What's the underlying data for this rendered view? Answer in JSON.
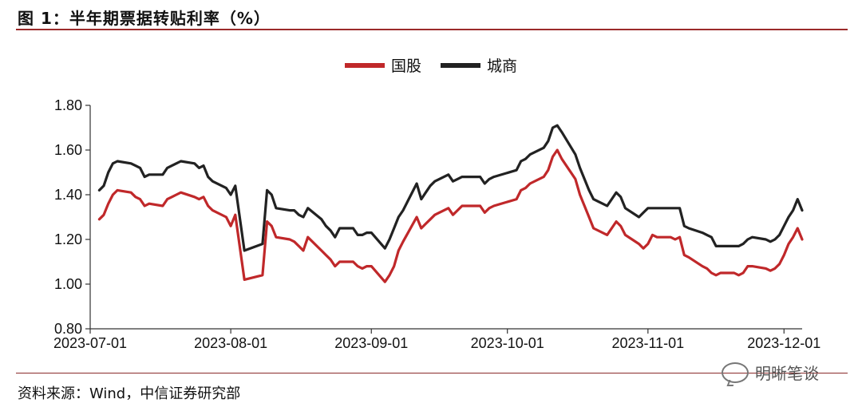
{
  "figure": {
    "title": "图 1：半年期票据转贴利率（%）",
    "source": "资料来源：Wind，中信证券研究部",
    "watermark": "明晰笔谈"
  },
  "chart_data": {
    "type": "line",
    "ylim": [
      0.8,
      1.8
    ],
    "yticks": [
      "1.80",
      "1.60",
      "1.40",
      "1.20",
      "1.00",
      "0.80"
    ],
    "xticks": [
      "2023-07-01",
      "2023-08-01",
      "2023-09-01",
      "2023-10-01",
      "2023-11-01",
      "2023-12-01"
    ],
    "x_start": "2023-07-01",
    "x_end": "2023-12-05",
    "legend_position": "top-center",
    "grid": false,
    "series": [
      {
        "name": "国股",
        "color": "#c0282a",
        "points": [
          [
            "2023-07-03",
            1.29
          ],
          [
            "2023-07-04",
            1.31
          ],
          [
            "2023-07-05",
            1.36
          ],
          [
            "2023-07-06",
            1.4
          ],
          [
            "2023-07-07",
            1.42
          ],
          [
            "2023-07-10",
            1.41
          ],
          [
            "2023-07-11",
            1.39
          ],
          [
            "2023-07-12",
            1.38
          ],
          [
            "2023-07-13",
            1.35
          ],
          [
            "2023-07-14",
            1.36
          ],
          [
            "2023-07-17",
            1.35
          ],
          [
            "2023-07-18",
            1.38
          ],
          [
            "2023-07-19",
            1.39
          ],
          [
            "2023-07-20",
            1.4
          ],
          [
            "2023-07-21",
            1.41
          ],
          [
            "2023-07-24",
            1.39
          ],
          [
            "2023-07-25",
            1.38
          ],
          [
            "2023-07-26",
            1.39
          ],
          [
            "2023-07-27",
            1.35
          ],
          [
            "2023-07-28",
            1.33
          ],
          [
            "2023-07-31",
            1.3
          ],
          [
            "2023-08-01",
            1.26
          ],
          [
            "2023-08-02",
            1.31
          ],
          [
            "2023-08-04",
            1.02
          ],
          [
            "2023-08-08",
            1.04
          ],
          [
            "2023-08-09",
            1.28
          ],
          [
            "2023-08-10",
            1.26
          ],
          [
            "2023-08-11",
            1.21
          ],
          [
            "2023-08-14",
            1.2
          ],
          [
            "2023-08-15",
            1.19
          ],
          [
            "2023-08-16",
            1.17
          ],
          [
            "2023-08-17",
            1.15
          ],
          [
            "2023-08-18",
            1.21
          ],
          [
            "2023-08-21",
            1.15
          ],
          [
            "2023-08-22",
            1.13
          ],
          [
            "2023-08-23",
            1.11
          ],
          [
            "2023-08-24",
            1.08
          ],
          [
            "2023-08-25",
            1.1
          ],
          [
            "2023-08-28",
            1.1
          ],
          [
            "2023-08-29",
            1.08
          ],
          [
            "2023-08-30",
            1.07
          ],
          [
            "2023-08-31",
            1.08
          ],
          [
            "2023-09-01",
            1.08
          ],
          [
            "2023-09-04",
            1.01
          ],
          [
            "2023-09-05",
            1.04
          ],
          [
            "2023-09-06",
            1.08
          ],
          [
            "2023-09-07",
            1.15
          ],
          [
            "2023-09-08",
            1.19
          ],
          [
            "2023-09-11",
            1.3
          ],
          [
            "2023-09-12",
            1.25
          ],
          [
            "2023-09-13",
            1.27
          ],
          [
            "2023-09-14",
            1.29
          ],
          [
            "2023-09-15",
            1.31
          ],
          [
            "2023-09-18",
            1.34
          ],
          [
            "2023-09-19",
            1.31
          ],
          [
            "2023-09-20",
            1.33
          ],
          [
            "2023-09-21",
            1.35
          ],
          [
            "2023-09-22",
            1.35
          ],
          [
            "2023-09-25",
            1.35
          ],
          [
            "2023-09-26",
            1.32
          ],
          [
            "2023-09-27",
            1.34
          ],
          [
            "2023-09-28",
            1.35
          ],
          [
            "2023-10-03",
            1.38
          ],
          [
            "2023-10-04",
            1.42
          ],
          [
            "2023-10-05",
            1.43
          ],
          [
            "2023-10-06",
            1.45
          ],
          [
            "2023-10-09",
            1.48
          ],
          [
            "2023-10-10",
            1.51
          ],
          [
            "2023-10-11",
            1.57
          ],
          [
            "2023-10-12",
            1.6
          ],
          [
            "2023-10-13",
            1.56
          ],
          [
            "2023-10-16",
            1.47
          ],
          [
            "2023-10-17",
            1.4
          ],
          [
            "2023-10-18",
            1.35
          ],
          [
            "2023-10-19",
            1.3
          ],
          [
            "2023-10-20",
            1.25
          ],
          [
            "2023-10-23",
            1.22
          ],
          [
            "2023-10-24",
            1.25
          ],
          [
            "2023-10-25",
            1.28
          ],
          [
            "2023-10-26",
            1.26
          ],
          [
            "2023-10-27",
            1.22
          ],
          [
            "2023-10-30",
            1.18
          ],
          [
            "2023-10-31",
            1.16
          ],
          [
            "2023-11-01",
            1.18
          ],
          [
            "2023-11-02",
            1.22
          ],
          [
            "2023-11-03",
            1.21
          ],
          [
            "2023-11-06",
            1.21
          ],
          [
            "2023-11-07",
            1.2
          ],
          [
            "2023-11-08",
            1.21
          ],
          [
            "2023-11-09",
            1.13
          ],
          [
            "2023-11-10",
            1.12
          ],
          [
            "2023-11-13",
            1.08
          ],
          [
            "2023-11-14",
            1.07
          ],
          [
            "2023-11-15",
            1.05
          ],
          [
            "2023-11-16",
            1.04
          ],
          [
            "2023-11-17",
            1.05
          ],
          [
            "2023-11-20",
            1.05
          ],
          [
            "2023-11-21",
            1.04
          ],
          [
            "2023-11-22",
            1.05
          ],
          [
            "2023-11-23",
            1.08
          ],
          [
            "2023-11-24",
            1.08
          ],
          [
            "2023-11-27",
            1.07
          ],
          [
            "2023-11-28",
            1.06
          ],
          [
            "2023-11-29",
            1.07
          ],
          [
            "2023-11-30",
            1.09
          ],
          [
            "2023-12-01",
            1.13
          ],
          [
            "2023-12-02",
            1.18
          ],
          [
            "2023-12-03",
            1.21
          ],
          [
            "2023-12-04",
            1.25
          ],
          [
            "2023-12-05",
            1.2
          ]
        ]
      },
      {
        "name": "城商",
        "color": "#222222",
        "points": [
          [
            "2023-07-03",
            1.42
          ],
          [
            "2023-07-04",
            1.44
          ],
          [
            "2023-07-05",
            1.5
          ],
          [
            "2023-07-06",
            1.54
          ],
          [
            "2023-07-07",
            1.55
          ],
          [
            "2023-07-10",
            1.54
          ],
          [
            "2023-07-11",
            1.53
          ],
          [
            "2023-07-12",
            1.52
          ],
          [
            "2023-07-13",
            1.48
          ],
          [
            "2023-07-14",
            1.49
          ],
          [
            "2023-07-17",
            1.49
          ],
          [
            "2023-07-18",
            1.52
          ],
          [
            "2023-07-19",
            1.53
          ],
          [
            "2023-07-20",
            1.54
          ],
          [
            "2023-07-21",
            1.55
          ],
          [
            "2023-07-24",
            1.54
          ],
          [
            "2023-07-25",
            1.52
          ],
          [
            "2023-07-26",
            1.53
          ],
          [
            "2023-07-27",
            1.48
          ],
          [
            "2023-07-28",
            1.46
          ],
          [
            "2023-07-31",
            1.43
          ],
          [
            "2023-08-01",
            1.4
          ],
          [
            "2023-08-02",
            1.44
          ],
          [
            "2023-08-04",
            1.15
          ],
          [
            "2023-08-08",
            1.18
          ],
          [
            "2023-08-09",
            1.42
          ],
          [
            "2023-08-10",
            1.4
          ],
          [
            "2023-08-11",
            1.34
          ],
          [
            "2023-08-14",
            1.33
          ],
          [
            "2023-08-15",
            1.33
          ],
          [
            "2023-08-16",
            1.31
          ],
          [
            "2023-08-17",
            1.3
          ],
          [
            "2023-08-18",
            1.34
          ],
          [
            "2023-08-21",
            1.29
          ],
          [
            "2023-08-22",
            1.26
          ],
          [
            "2023-08-23",
            1.24
          ],
          [
            "2023-08-24",
            1.21
          ],
          [
            "2023-08-25",
            1.25
          ],
          [
            "2023-08-28",
            1.25
          ],
          [
            "2023-08-29",
            1.22
          ],
          [
            "2023-08-30",
            1.22
          ],
          [
            "2023-08-31",
            1.23
          ],
          [
            "2023-09-01",
            1.23
          ],
          [
            "2023-09-04",
            1.16
          ],
          [
            "2023-09-05",
            1.2
          ],
          [
            "2023-09-06",
            1.25
          ],
          [
            "2023-09-07",
            1.3
          ],
          [
            "2023-09-08",
            1.33
          ],
          [
            "2023-09-11",
            1.45
          ],
          [
            "2023-09-12",
            1.38
          ],
          [
            "2023-09-13",
            1.41
          ],
          [
            "2023-09-14",
            1.44
          ],
          [
            "2023-09-15",
            1.46
          ],
          [
            "2023-09-18",
            1.49
          ],
          [
            "2023-09-19",
            1.46
          ],
          [
            "2023-09-20",
            1.47
          ],
          [
            "2023-09-21",
            1.48
          ],
          [
            "2023-09-22",
            1.48
          ],
          [
            "2023-09-25",
            1.48
          ],
          [
            "2023-09-26",
            1.45
          ],
          [
            "2023-09-27",
            1.47
          ],
          [
            "2023-09-28",
            1.48
          ],
          [
            "2023-10-03",
            1.51
          ],
          [
            "2023-10-04",
            1.55
          ],
          [
            "2023-10-05",
            1.56
          ],
          [
            "2023-10-06",
            1.58
          ],
          [
            "2023-10-09",
            1.61
          ],
          [
            "2023-10-10",
            1.64
          ],
          [
            "2023-10-11",
            1.7
          ],
          [
            "2023-10-12",
            1.71
          ],
          [
            "2023-10-13",
            1.68
          ],
          [
            "2023-10-16",
            1.58
          ],
          [
            "2023-10-17",
            1.52
          ],
          [
            "2023-10-18",
            1.47
          ],
          [
            "2023-10-19",
            1.42
          ],
          [
            "2023-10-20",
            1.38
          ],
          [
            "2023-10-23",
            1.35
          ],
          [
            "2023-10-24",
            1.38
          ],
          [
            "2023-10-25",
            1.41
          ],
          [
            "2023-10-26",
            1.39
          ],
          [
            "2023-10-27",
            1.34
          ],
          [
            "2023-10-30",
            1.3
          ],
          [
            "2023-10-31",
            1.32
          ],
          [
            "2023-11-01",
            1.34
          ],
          [
            "2023-11-02",
            1.34
          ],
          [
            "2023-11-03",
            1.34
          ],
          [
            "2023-11-06",
            1.34
          ],
          [
            "2023-11-07",
            1.34
          ],
          [
            "2023-11-08",
            1.34
          ],
          [
            "2023-11-09",
            1.26
          ],
          [
            "2023-11-10",
            1.25
          ],
          [
            "2023-11-13",
            1.23
          ],
          [
            "2023-11-14",
            1.22
          ],
          [
            "2023-11-15",
            1.21
          ],
          [
            "2023-11-16",
            1.17
          ],
          [
            "2023-11-17",
            1.17
          ],
          [
            "2023-11-20",
            1.17
          ],
          [
            "2023-11-21",
            1.17
          ],
          [
            "2023-11-22",
            1.18
          ],
          [
            "2023-11-23",
            1.2
          ],
          [
            "2023-11-24",
            1.21
          ],
          [
            "2023-11-27",
            1.2
          ],
          [
            "2023-11-28",
            1.19
          ],
          [
            "2023-11-29",
            1.2
          ],
          [
            "2023-11-30",
            1.22
          ],
          [
            "2023-12-01",
            1.26
          ],
          [
            "2023-12-02",
            1.3
          ],
          [
            "2023-12-03",
            1.33
          ],
          [
            "2023-12-04",
            1.38
          ],
          [
            "2023-12-05",
            1.33
          ]
        ]
      }
    ]
  }
}
